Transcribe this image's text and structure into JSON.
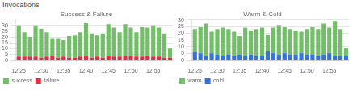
{
  "title": "Invocations",
  "chart_data": [
    {
      "type": "bar",
      "title": "Success & Failure",
      "stacked": true,
      "categories": [
        "12:25",
        null,
        null,
        null,
        "12:30",
        null,
        null,
        null,
        "12:35",
        null,
        null,
        null,
        "12:40",
        null,
        null,
        null,
        "12:45",
        null,
        null,
        null,
        "12:50",
        null,
        null,
        null,
        "12:55",
        null,
        null,
        null
      ],
      "series": [
        {
          "name": "failure",
          "color": "#e02f44",
          "values": [
            3,
            3,
            3,
            3,
            2,
            3,
            4,
            2,
            3,
            2,
            2,
            3,
            4,
            2,
            3,
            2,
            4,
            3,
            3,
            4,
            4,
            3,
            3,
            4,
            3,
            3,
            2,
            2
          ]
        },
        {
          "name": "success",
          "color": "#73bf69",
          "values": [
            27,
            21,
            17,
            27,
            25,
            21,
            15,
            17,
            15,
            19,
            20,
            21,
            28,
            21,
            19,
            21,
            27,
            25,
            21,
            27,
            24,
            21,
            26,
            24,
            27,
            25,
            21,
            8
          ]
        }
      ],
      "ylim": [
        0,
        35
      ],
      "yticks": [
        0,
        5,
        10,
        15,
        20,
        25,
        30
      ],
      "grid": true,
      "legend": "lower left"
    },
    {
      "type": "bar",
      "title": "Warm & Cold",
      "stacked": true,
      "categories": [
        "12:25",
        null,
        null,
        null,
        "12:30",
        null,
        null,
        null,
        "12:35",
        null,
        null,
        null,
        "12:40",
        null,
        null,
        null,
        "12:45",
        null,
        null,
        null,
        "12:50",
        null,
        null,
        null,
        "12:55",
        null,
        null,
        null
      ],
      "series": [
        {
          "name": "cold",
          "color": "#3274d9",
          "values": [
            6,
            5,
            3,
            5,
            4,
            3,
            4,
            3,
            4,
            3,
            4,
            3,
            3,
            7,
            5,
            4,
            5,
            4,
            4,
            5,
            4,
            4,
            3,
            4,
            5,
            3,
            3,
            3
          ]
        },
        {
          "name": "warm",
          "color": "#73bf69",
          "values": [
            17,
            20,
            24,
            16,
            19,
            21,
            19,
            18,
            14,
            21,
            18,
            20,
            21,
            12,
            19,
            22,
            20,
            19,
            18,
            16,
            19,
            21,
            20,
            23,
            19,
            26,
            20,
            6
          ]
        }
      ],
      "ylim": [
        0,
        30
      ],
      "yticks": [
        0,
        5,
        10,
        15,
        20,
        25,
        30
      ],
      "grid": true,
      "legend": "lower left"
    }
  ]
}
